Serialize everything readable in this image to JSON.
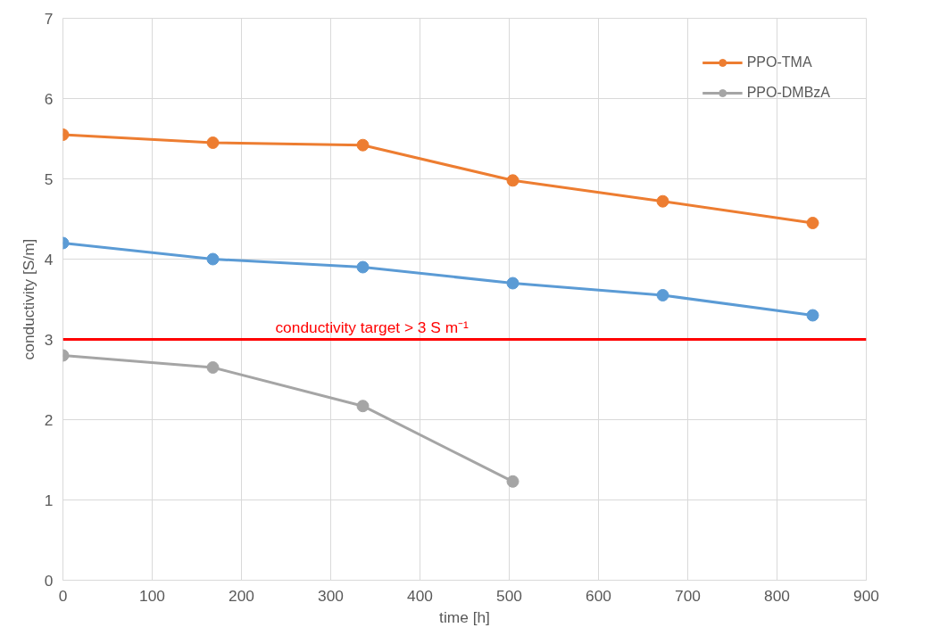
{
  "chart_data": {
    "type": "line",
    "xlabel": "time [h]",
    "ylabel": "conductivity [S/m]",
    "x": [
      0,
      168,
      336,
      504,
      672,
      840
    ],
    "series": [
      {
        "color": "#5b9bd5",
        "values": [
          4.2,
          4.0,
          3.9,
          3.7,
          3.55,
          3.3
        ]
      },
      {
        "name": "PPO-TMA",
        "color": "#ed7d31",
        "values": [
          5.55,
          5.45,
          5.42,
          4.98,
          4.72,
          4.45
        ]
      },
      {
        "name": "PPO-DMBzA",
        "color": "#a5a5a5",
        "values": [
          2.8,
          2.65,
          2.17,
          1.23,
          null,
          null
        ]
      }
    ],
    "xlim": [
      0,
      900
    ],
    "xticks": [
      0,
      100,
      200,
      300,
      400,
      500,
      600,
      700,
      800,
      900
    ],
    "ylim": [
      0,
      7
    ],
    "yticks": [
      0,
      1,
      2,
      3,
      4,
      5,
      6,
      7
    ],
    "ref_lines": [
      {
        "axis": "y",
        "value": 3,
        "label": "conductivity target > 3 S m⁻¹",
        "color": "#ff0000"
      }
    ],
    "grid": true,
    "legend": "top right",
    "marker": "circle",
    "line_style": "solid"
  }
}
